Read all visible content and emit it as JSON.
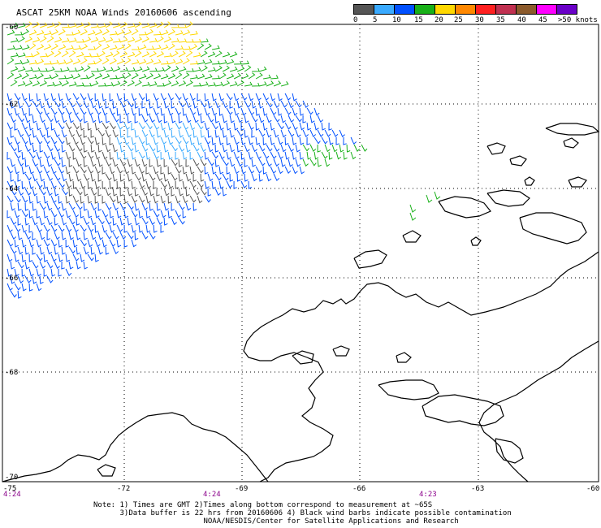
{
  "title": "ASCAT 25KM NOAA Winds 20160606 ascending",
  "legend": {
    "colors": [
      "#555555",
      "#3aaaff",
      "#0050ff",
      "#18b018",
      "#ffd800",
      "#ff8800",
      "#ff2020",
      "#c03050",
      "#8b5a2b",
      "#ff00ff",
      "#6a00c8"
    ],
    "labels": [
      "0",
      "5",
      "10",
      "15",
      "20",
      "25",
      "30",
      "35",
      "40",
      "45",
      ">50 knots"
    ]
  },
  "lat_labels": [
    "-60",
    "-62",
    "-64",
    "-66",
    "-68",
    "-70"
  ],
  "lon_labels": [
    "-75",
    "-72",
    "-69",
    "-66",
    "-63",
    "-60"
  ],
  "time_labels": [
    "4:24",
    "4:24",
    "4:23"
  ],
  "notes": [
    "Note: 1) Times are GMT 2)Times along bottom correspond to measurement at ~65S",
    "      3)Data buffer is 22 hrs from 20160606 4) Black wind barbs indicate possible contamination",
    "                         NOAA/NESDIS/Center for Satellite Applications and Research"
  ]
}
